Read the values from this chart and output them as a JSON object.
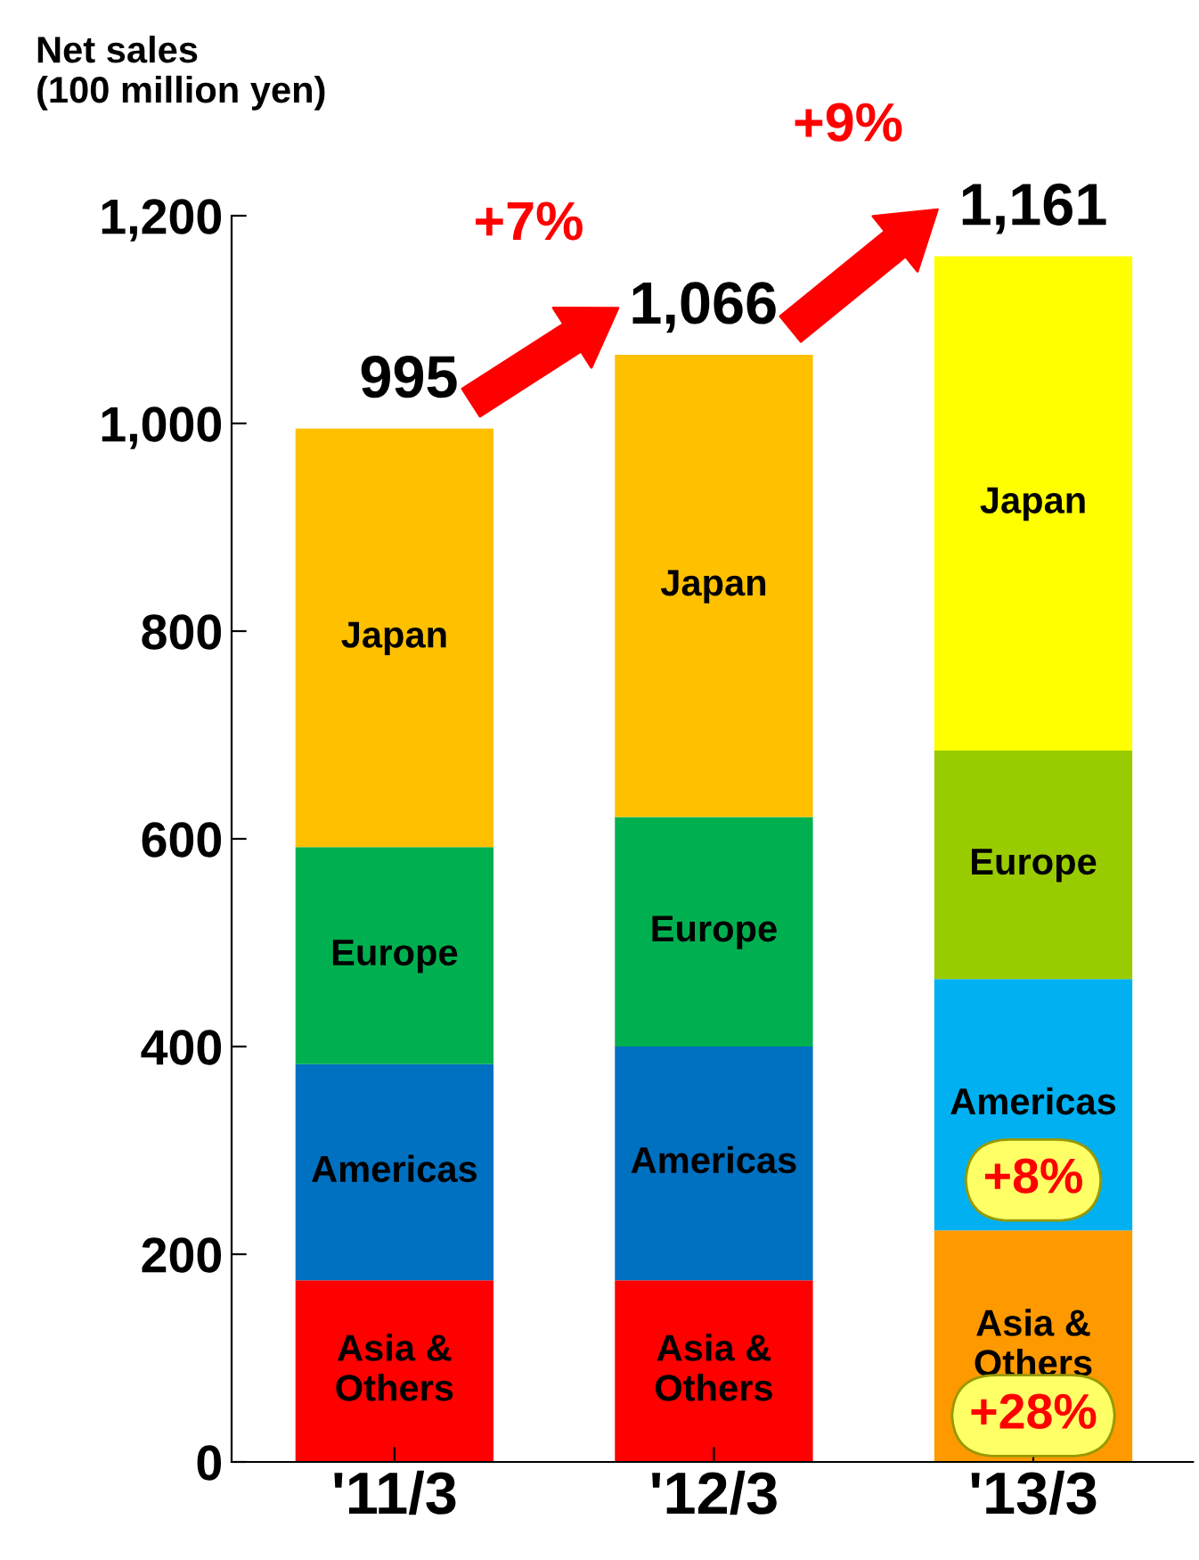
{
  "chart_data": {
    "type": "bar",
    "stacked": true,
    "ylabel": "Net sales\n(100 million yen)",
    "categories": [
      "'11/3",
      "'12/3",
      "'13/3"
    ],
    "series": [
      {
        "name": "Asia &\nOthers",
        "colors": [
          "#ff0000",
          "#ff0000",
          "#ff9900"
        ],
        "values": [
          175,
          175,
          223
        ]
      },
      {
        "name": "Americas",
        "colors": [
          "#0070c0",
          "#0070c0",
          "#00b0f0"
        ],
        "values": [
          208,
          225,
          242
        ]
      },
      {
        "name": "Europe",
        "colors": [
          "#00b050",
          "#00b050",
          "#99cc00"
        ],
        "values": [
          209,
          221,
          220
        ]
      },
      {
        "name": "Japan",
        "colors": [
          "#ffc000",
          "#ffc000",
          "#ffff00"
        ],
        "values": [
          403,
          445,
          476
        ]
      }
    ],
    "totals": [
      "995",
      "1,066",
      "1,161"
    ],
    "annotations": [
      "+7%",
      "+9%",
      "+8%",
      "+28%"
    ],
    "ylim": [
      0,
      1200
    ],
    "yticks": [
      0,
      200,
      400,
      600,
      800,
      {
        "value": 1000,
        "label": "1,000"
      },
      {
        "value": 1200,
        "label": "1,200"
      }
    ],
    "grid": false,
    "legend": false
  }
}
